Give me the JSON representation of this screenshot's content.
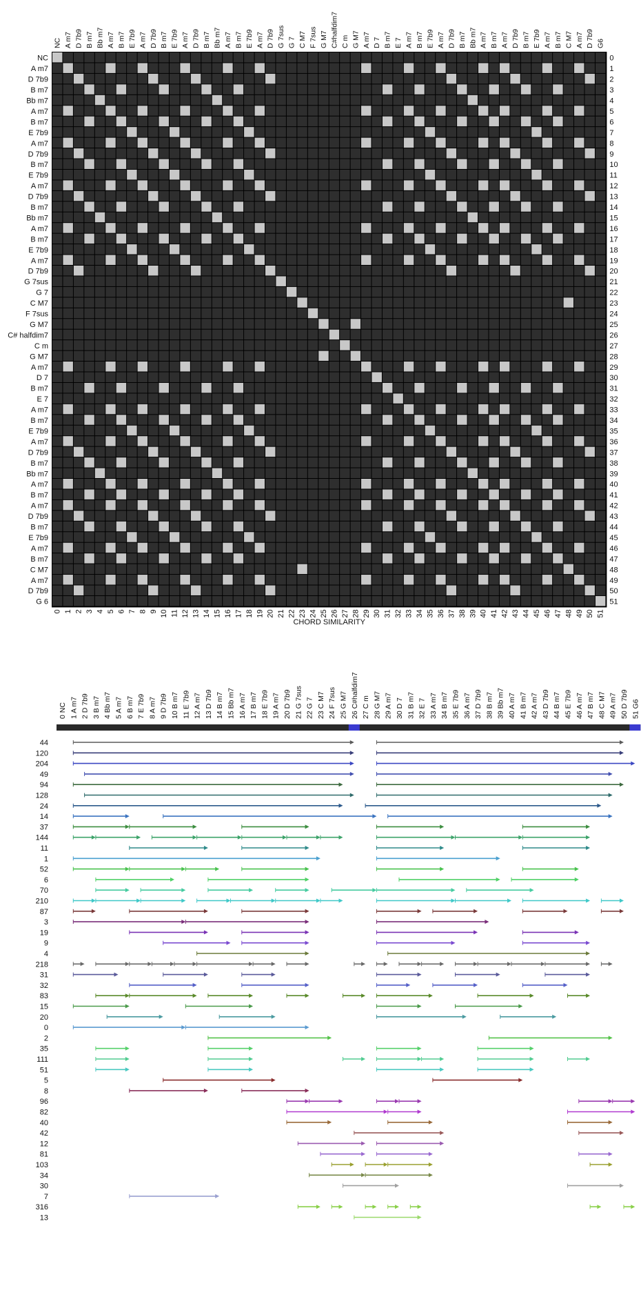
{
  "chord_labels": [
    "NC",
    "A m7",
    "D 7b9",
    "B m7",
    "Bb m7",
    "A m7",
    "B m7",
    "E 7b9",
    "A m7",
    "D 7b9",
    "B m7",
    "E 7b9",
    "A m7",
    "D 7b9",
    "B m7",
    "Bb m7",
    "A m7",
    "B m7",
    "E 7b9",
    "A m7",
    "D 7b9",
    "G 7sus",
    "G 7",
    "C M7",
    "F 7sus",
    "G M7",
    "C# halfdim7",
    "C m",
    "G M7",
    "A m7",
    "D 7",
    "B m7",
    "E 7",
    "A m7",
    "B m7",
    "E 7b9",
    "A m7",
    "D 7b9",
    "B m7",
    "Bb m7",
    "A m7",
    "B m7",
    "A m7",
    "D 7b9",
    "B m7",
    "E 7b9",
    "A m7",
    "B m7",
    "C M7",
    "A m7",
    "D 7b9",
    "G 6"
  ],
  "top_labels": [
    "NC",
    "A m7",
    "D 7b9",
    "B m7",
    "Bb m7",
    "A m7",
    "B m7",
    "E 7b9",
    "A m7",
    "D 7b9",
    "B m7",
    "E 7b9",
    "A m7",
    "D 7b9",
    "B m7",
    "Bb m7",
    "A m7",
    "B m7",
    "E 7b9",
    "A m7",
    "D 7b9",
    "G 7sus",
    "G 7",
    "C M7",
    "F 7sus",
    "G M7",
    "C#halfdim7",
    "C m",
    "G M7",
    "A m7",
    "D 7",
    "B m7",
    "E 7",
    "A m7",
    "B m7",
    "E 7b9",
    "A m7",
    "D 7b9",
    "B m7",
    "Bb m7",
    "A m7",
    "B m7",
    "A m7",
    "D 7b9",
    "B m7",
    "E 7b9",
    "A m7",
    "B m7",
    "C M7",
    "A m7",
    "D 7b9",
    "G6"
  ],
  "chart_data": [
    {
      "type": "heatmap",
      "xlabel": "CHORD SIMILARITY",
      "n": 52,
      "matrix_rule": "light cell = identical chord label, dark cell = different chord label (row/column order as chord_labels)",
      "x_ticks": "0-51",
      "y_ticks": "0-51"
    },
    {
      "type": "line",
      "x_ticks": "0-51",
      "segment_ranges_note": "each row is a chord-pattern frequency; arrows mark occurrences along the 52-chord sequence",
      "highlighted_columns": [
        26,
        51
      ],
      "rows": [
        {
          "label": "44",
          "color": "#5a5a5a",
          "segs": [
            [
              1,
              26
            ],
            [
              28,
              50
            ]
          ]
        },
        {
          "label": "120",
          "color": "#3a3f7a",
          "segs": [
            [
              1,
              26
            ],
            [
              28,
              50
            ]
          ]
        },
        {
          "label": "204",
          "color": "#3b47c2",
          "segs": [
            [
              1,
              26
            ],
            [
              28,
              51
            ]
          ]
        },
        {
          "label": "49",
          "color": "#4350b0",
          "segs": [
            [
              2,
              26
            ],
            [
              28,
              49
            ]
          ]
        },
        {
          "label": "94",
          "color": "#3d6a3f",
          "segs": [
            [
              1,
              25
            ],
            [
              28,
              50
            ]
          ]
        },
        {
          "label": "128",
          "color": "#2f6b6b",
          "segs": [
            [
              2,
              26
            ],
            [
              28,
              49
            ]
          ]
        },
        {
          "label": "24",
          "color": "#2c5a8c",
          "segs": [
            [
              1,
              25
            ],
            [
              27,
              48
            ]
          ]
        },
        {
          "label": "14",
          "color": "#3b74c0",
          "segs": [
            [
              1,
              6
            ],
            [
              9,
              28
            ],
            [
              29,
              49
            ]
          ]
        },
        {
          "label": "37",
          "color": "#3c8d3f",
          "segs": [
            [
              1,
              6
            ],
            [
              6,
              12
            ],
            [
              16,
              22
            ],
            [
              28,
              34
            ],
            [
              41,
              47
            ]
          ]
        },
        {
          "label": "144",
          "color": "#3da36a",
          "segs": [
            [
              1,
              3
            ],
            [
              3,
              7
            ],
            [
              8,
              12
            ],
            [
              12,
              16
            ],
            [
              16,
              20
            ],
            [
              20,
              23
            ],
            [
              23,
              25
            ],
            [
              28,
              35
            ],
            [
              35,
              41
            ],
            [
              41,
              47
            ]
          ]
        },
        {
          "label": "11",
          "color": "#2e8a8a",
          "segs": [
            [
              6,
              13
            ],
            [
              16,
              22
            ],
            [
              28,
              34
            ],
            [
              41,
              47
            ]
          ]
        },
        {
          "label": "1",
          "color": "#4aa0d0",
          "segs": [
            [
              1,
              23
            ],
            [
              28,
              39
            ]
          ]
        },
        {
          "label": "52",
          "color": "#49c24e",
          "segs": [
            [
              1,
              6
            ],
            [
              6,
              11
            ],
            [
              11,
              14
            ],
            [
              16,
              22
            ],
            [
              28,
              34
            ],
            [
              41,
              46
            ]
          ]
        },
        {
          "label": "6",
          "color": "#4fd066",
          "segs": [
            [
              3,
              10
            ],
            [
              13,
              22
            ],
            [
              30,
              39
            ],
            [
              40,
              46
            ]
          ]
        },
        {
          "label": "70",
          "color": "#45cba0",
          "segs": [
            [
              3,
              6
            ],
            [
              7,
              11
            ],
            [
              13,
              17
            ],
            [
              19,
              22
            ],
            [
              24,
              28
            ],
            [
              28,
              35
            ],
            [
              36,
              42
            ]
          ]
        },
        {
          "label": "210",
          "color": "#3ec8c8",
          "segs": [
            [
              1,
              3
            ],
            [
              3,
              7
            ],
            [
              7,
              11
            ],
            [
              12,
              15
            ],
            [
              15,
              19
            ],
            [
              19,
              23
            ],
            [
              23,
              25
            ],
            [
              28,
              35
            ],
            [
              35,
              40
            ],
            [
              41,
              47
            ],
            [
              48,
              50
            ]
          ]
        },
        {
          "label": "87",
          "color": "#7a3a3a",
          "segs": [
            [
              1,
              3
            ],
            [
              6,
              13
            ],
            [
              16,
              22
            ],
            [
              28,
              32
            ],
            [
              33,
              37
            ],
            [
              41,
              45
            ],
            [
              48,
              50
            ]
          ]
        },
        {
          "label": "3",
          "color": "#7a2e7a",
          "segs": [
            [
              1,
              11
            ],
            [
              11,
              22
            ],
            [
              28,
              38
            ]
          ]
        },
        {
          "label": "19",
          "color": "#7a33b5",
          "segs": [
            [
              6,
              13
            ],
            [
              16,
              22
            ],
            [
              28,
              37
            ],
            [
              41,
              46
            ]
          ]
        },
        {
          "label": "9",
          "color": "#7a4ad0",
          "segs": [
            [
              9,
              15
            ],
            [
              16,
              22
            ],
            [
              28,
              35
            ],
            [
              41,
              47
            ]
          ]
        },
        {
          "label": "4",
          "color": "#6b7a3a",
          "segs": [
            [
              12,
              22
            ],
            [
              29,
              47
            ]
          ]
        },
        {
          "label": "218",
          "color": "#6a6a6a",
          "segs": [
            [
              1,
              2
            ],
            [
              3,
              6
            ],
            [
              6,
              8
            ],
            [
              8,
              10
            ],
            [
              10,
              12
            ],
            [
              12,
              17
            ],
            [
              17,
              19
            ],
            [
              20,
              22
            ],
            [
              26,
              27
            ],
            [
              28,
              29
            ],
            [
              30,
              32
            ],
            [
              32,
              34
            ],
            [
              35,
              37
            ],
            [
              37,
              40
            ],
            [
              40,
              43
            ],
            [
              43,
              47
            ],
            [
              48,
              49
            ]
          ]
        },
        {
          "label": "31",
          "color": "#5a5a9a",
          "segs": [
            [
              1,
              5
            ],
            [
              9,
              13
            ],
            [
              16,
              19
            ],
            [
              28,
              32
            ],
            [
              35,
              39
            ],
            [
              43,
              47
            ]
          ]
        },
        {
          "label": "32",
          "color": "#5560c8",
          "segs": [
            [
              6,
              12
            ],
            [
              16,
              22
            ],
            [
              28,
              31
            ],
            [
              33,
              37
            ],
            [
              41,
              45
            ]
          ]
        },
        {
          "label": "83",
          "color": "#5a8a2a",
          "segs": [
            [
              3,
              6
            ],
            [
              6,
              12
            ],
            [
              13,
              17
            ],
            [
              20,
              22
            ],
            [
              25,
              27
            ],
            [
              28,
              33
            ],
            [
              37,
              42
            ],
            [
              45,
              47
            ]
          ]
        },
        {
          "label": "15",
          "color": "#4a9a4a",
          "segs": [
            [
              1,
              6
            ],
            [
              11,
              17
            ],
            [
              28,
              32
            ],
            [
              35,
              41
            ]
          ]
        },
        {
          "label": "20",
          "color": "#4a9aa0",
          "segs": [
            [
              4,
              9
            ],
            [
              14,
              19
            ],
            [
              28,
              36
            ],
            [
              39,
              44
            ]
          ]
        },
        {
          "label": "0",
          "color": "#5a9ad0",
          "segs": [
            [
              1,
              11
            ],
            [
              11,
              22
            ]
          ]
        },
        {
          "label": "2",
          "color": "#55c24a",
          "segs": [
            [
              13,
              24
            ],
            [
              38,
              49
            ]
          ]
        },
        {
          "label": "35",
          "color": "#55d06a",
          "segs": [
            [
              3,
              6
            ],
            [
              13,
              17
            ],
            [
              28,
              32
            ],
            [
              37,
              42
            ]
          ]
        },
        {
          "label": "111",
          "color": "#50cc90",
          "segs": [
            [
              3,
              6
            ],
            [
              13,
              17
            ],
            [
              25,
              27
            ],
            [
              28,
              32
            ],
            [
              32,
              34
            ],
            [
              37,
              42
            ],
            [
              45,
              47
            ]
          ]
        },
        {
          "label": "51",
          "color": "#48c8c0",
          "segs": [
            [
              3,
              6
            ],
            [
              13,
              17
            ],
            [
              28,
              34
            ],
            [
              37,
              42
            ]
          ]
        },
        {
          "label": "5",
          "color": "#8a2e2e",
          "segs": [
            [
              9,
              19
            ],
            [
              33,
              41
            ]
          ]
        },
        {
          "label": "8",
          "color": "#8a2e5a",
          "segs": [
            [
              6,
              13
            ],
            [
              16,
              22
            ]
          ]
        },
        {
          "label": "96",
          "color": "#9a3ab0",
          "segs": [
            [
              20,
              22
            ],
            [
              22,
              25
            ],
            [
              28,
              30
            ],
            [
              30,
              32
            ],
            [
              46,
              49
            ],
            [
              49,
              51
            ]
          ]
        },
        {
          "label": "82",
          "color": "#b03ad0",
          "segs": [
            [
              20,
              29
            ],
            [
              29,
              32
            ],
            [
              45,
              51
            ]
          ]
        },
        {
          "label": "40",
          "color": "#9a6a3a",
          "segs": [
            [
              20,
              24
            ],
            [
              29,
              33
            ],
            [
              45,
              49
            ]
          ]
        },
        {
          "label": "42",
          "color": "#9a5a5a",
          "segs": [
            [
              26,
              34
            ],
            [
              46,
              50
            ]
          ]
        },
        {
          "label": "12",
          "color": "#9a5ab0",
          "segs": [
            [
              21,
              27
            ],
            [
              28,
              34
            ]
          ]
        },
        {
          "label": "81",
          "color": "#9a6ad0",
          "segs": [
            [
              23,
              27
            ],
            [
              28,
              33
            ],
            [
              46,
              49
            ]
          ]
        },
        {
          "label": "103",
          "color": "#9aa030",
          "segs": [
            [
              24,
              26
            ],
            [
              27,
              29
            ],
            [
              29,
              33
            ],
            [
              47,
              49
            ]
          ]
        },
        {
          "label": "34",
          "color": "#7a8a4a",
          "segs": [
            [
              22,
              27
            ],
            [
              27,
              33
            ]
          ]
        },
        {
          "label": "30",
          "color": "#a0a0a0",
          "segs": [
            [
              25,
              30
            ],
            [
              45,
              50
            ]
          ]
        },
        {
          "label": "7",
          "color": "#9aa0d0",
          "segs": [
            [
              6,
              14
            ]
          ]
        },
        {
          "label": "316",
          "color": "#8ad04a",
          "segs": [
            [
              21,
              23
            ],
            [
              24,
              25
            ],
            [
              27,
              28
            ],
            [
              29,
              30
            ],
            [
              31,
              32
            ],
            [
              47,
              48
            ],
            [
              50,
              51
            ]
          ]
        },
        {
          "label": "13",
          "color": "#9ad86a",
          "segs": [
            [
              26,
              32
            ]
          ]
        }
      ]
    }
  ]
}
